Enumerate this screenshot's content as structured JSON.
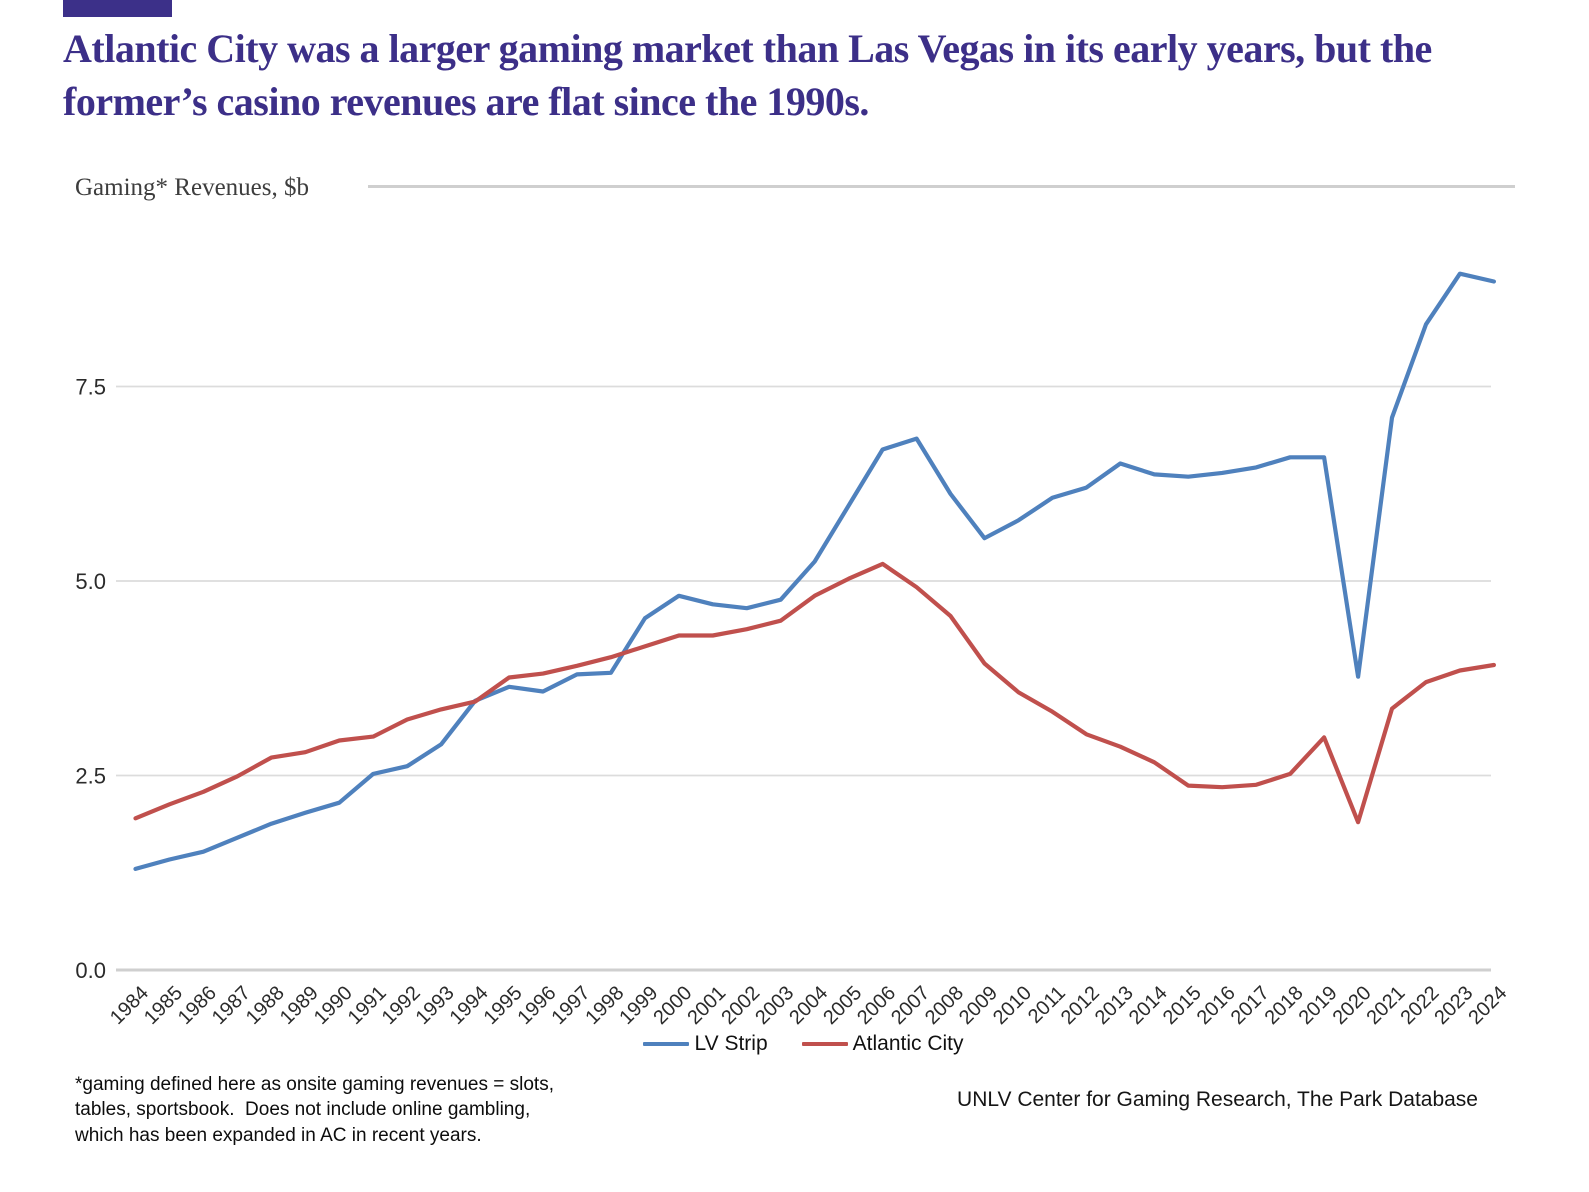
{
  "header": {
    "title": "Atlantic City was a larger gaming market than Las Vegas in its early years, but the former’s casino revenues are flat since the 1990s.",
    "accent_color": "#3c3089",
    "title_color": "#3c2f88"
  },
  "chart_data": {
    "type": "line",
    "title": "Gaming* Revenues, $b",
    "xlabel": "",
    "ylabel": "Gaming* Revenues, $b",
    "yticks": [
      "0.0",
      "2.5",
      "5.0",
      "7.5"
    ],
    "ylim": [
      0,
      9.5
    ],
    "grid": "horizontal",
    "legend_position": "bottom",
    "x": [
      1984,
      1985,
      1986,
      1987,
      1988,
      1989,
      1990,
      1991,
      1992,
      1993,
      1994,
      1995,
      1996,
      1997,
      1998,
      1999,
      2000,
      2001,
      2002,
      2003,
      2004,
      2005,
      2006,
      2007,
      2008,
      2009,
      2010,
      2011,
      2012,
      2013,
      2014,
      2015,
      2016,
      2017,
      2018,
      2019,
      2020,
      2021,
      2022,
      2023,
      2024
    ],
    "series": [
      {
        "name": "LV Strip",
        "color": "#4f81bd",
        "values": [
          1.3,
          1.42,
          1.52,
          1.7,
          1.88,
          2.02,
          2.15,
          2.52,
          2.62,
          2.9,
          3.46,
          3.64,
          3.58,
          3.8,
          3.82,
          4.52,
          4.81,
          4.7,
          4.65,
          4.76,
          5.25,
          5.97,
          6.69,
          6.83,
          6.12,
          5.55,
          5.78,
          6.07,
          6.2,
          6.51,
          6.37,
          6.34,
          6.39,
          6.46,
          6.59,
          6.59,
          3.77,
          7.1,
          8.3,
          8.95,
          8.85
        ]
      },
      {
        "name": "Atlantic City",
        "color": "#c0504d",
        "values": [
          1.95,
          2.13,
          2.29,
          2.49,
          2.73,
          2.8,
          2.95,
          3.0,
          3.22,
          3.35,
          3.45,
          3.76,
          3.81,
          3.91,
          4.02,
          4.16,
          4.3,
          4.3,
          4.38,
          4.49,
          4.81,
          5.03,
          5.22,
          4.92,
          4.55,
          3.94,
          3.57,
          3.32,
          3.03,
          2.87,
          2.67,
          2.37,
          2.35,
          2.38,
          2.52,
          2.99,
          1.9,
          3.36,
          3.7,
          3.85,
          3.92
        ]
      }
    ]
  },
  "footnote": "*gaming defined here as onsite gaming revenues = slots,\ntables, sportsbook.  Does not include online gambling,\nwhich has been expanded in AC in recent years.",
  "source": "UNLV Center for Gaming Research, The Park Database"
}
